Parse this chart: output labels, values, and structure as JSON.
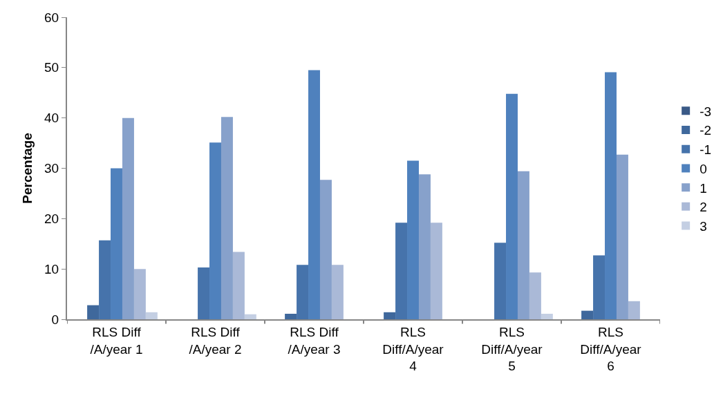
{
  "chart_data": {
    "type": "bar",
    "ylabel": "Percentage",
    "categories": [
      "RLS Diff\n/A/year 1",
      "RLS Diff\n/A/year 2",
      "RLS Diff\n/A/year 3",
      "RLS\nDiff/A/year\n4",
      "RLS\nDiff/A/year\n5",
      "RLS\nDiff/A/year\n6"
    ],
    "series": [
      {
        "name": "-3",
        "color": "#3a5a87",
        "values": [
          0,
          0,
          0,
          0,
          0,
          0
        ]
      },
      {
        "name": "-2",
        "color": "#3f689c",
        "values": [
          2.8,
          0,
          1.1,
          1.4,
          0,
          1.7
        ]
      },
      {
        "name": "-1",
        "color": "#4673ab",
        "values": [
          15.7,
          10.3,
          10.8,
          19.2,
          15.2,
          12.7
        ]
      },
      {
        "name": "0",
        "color": "#4f81bd",
        "values": [
          30.0,
          35.1,
          49.5,
          31.5,
          44.8,
          49.1
        ]
      },
      {
        "name": "1",
        "color": "#87a1cb",
        "values": [
          40.0,
          40.2,
          27.7,
          28.8,
          29.4,
          32.7
        ]
      },
      {
        "name": "2",
        "color": "#aab9d7",
        "values": [
          10.0,
          13.4,
          10.8,
          19.2,
          9.3,
          3.6
        ]
      },
      {
        "name": "3",
        "color": "#c4cfe3",
        "values": [
          1.4,
          1.0,
          0,
          0,
          1.1,
          0
        ]
      }
    ],
    "ylim": [
      0,
      60
    ],
    "yticks": [
      0,
      10,
      20,
      30,
      40,
      50,
      60
    ],
    "legend": "right"
  }
}
